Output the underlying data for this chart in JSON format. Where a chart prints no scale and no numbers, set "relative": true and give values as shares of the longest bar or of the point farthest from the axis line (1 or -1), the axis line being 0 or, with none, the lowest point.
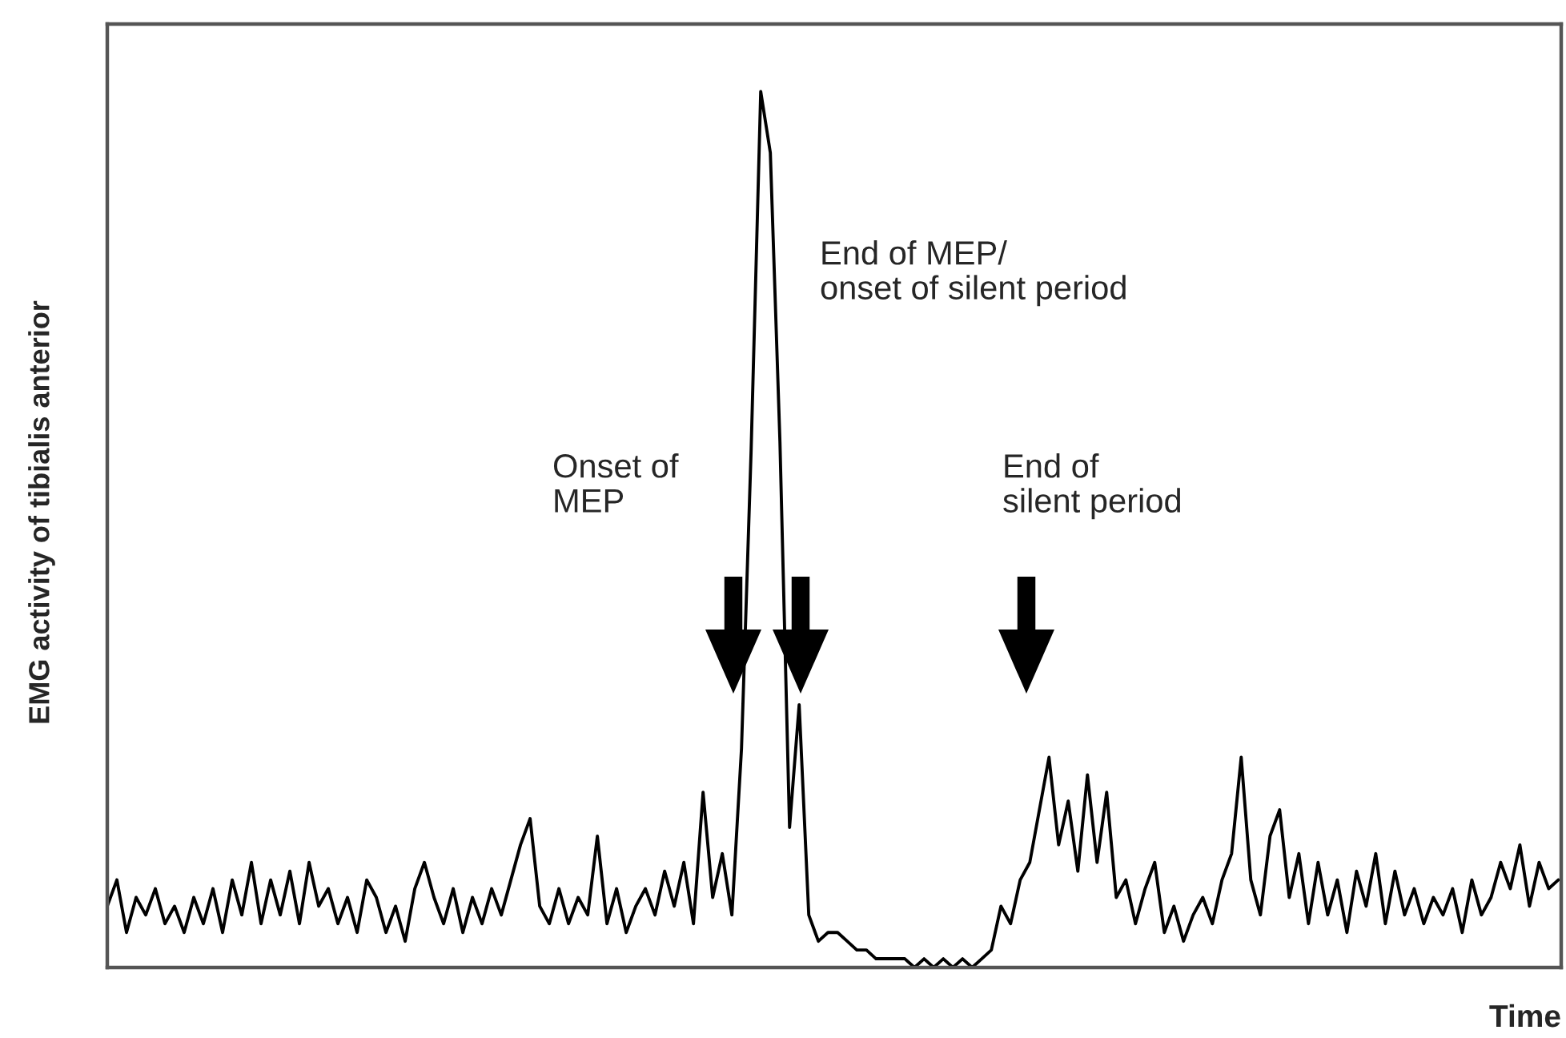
{
  "chart_data": {
    "type": "line",
    "relative": true,
    "xlabel": "Time",
    "ylabel": "EMG activity of tibialis anterior",
    "grid": false,
    "legend": false,
    "annotations": [
      "Onset of\nMEP",
      "End of MEP/\nonset of silent period",
      "End of\nsilent period"
    ],
    "categories": [
      null,
      null,
      null,
      null,
      null,
      null,
      null,
      null,
      null,
      null,
      null,
      null,
      null,
      null,
      null,
      null,
      null,
      null,
      null,
      null,
      null,
      null,
      null,
      null,
      null,
      null,
      null,
      null,
      null,
      null,
      null,
      null,
      null,
      null,
      null,
      null,
      null,
      null,
      null,
      null,
      null,
      null,
      null,
      null,
      null,
      null,
      null,
      null,
      null,
      null,
      null,
      null,
      null,
      null,
      null,
      null,
      null,
      null,
      null,
      null,
      null,
      null,
      null,
      null,
      null,
      null,
      null,
      null,
      null,
      null,
      null,
      null,
      null,
      null,
      null,
      null,
      null,
      null,
      null,
      null,
      null,
      null,
      null,
      null,
      null,
      null,
      null,
      null,
      null,
      null,
      null,
      null,
      null,
      null,
      null,
      null,
      null,
      null,
      null,
      null,
      null,
      null,
      null,
      null,
      null,
      null,
      null,
      null,
      null,
      null,
      null,
      null,
      null,
      null,
      null,
      null,
      null,
      null,
      null,
      null,
      null,
      null,
      null,
      null,
      null,
      null,
      null,
      null,
      null,
      null,
      null,
      null,
      null,
      null,
      null,
      null,
      null,
      null,
      null,
      null,
      null,
      null,
      null,
      null,
      null,
      null,
      null,
      null,
      null,
      null,
      null,
      null
    ],
    "series": [
      {
        "color": "#000000",
        "values": [
          0.07,
          0.1,
          0.04,
          0.08,
          0.06,
          0.09,
          0.05,
          0.07,
          0.04,
          0.08,
          0.05,
          0.09,
          0.04,
          0.1,
          0.06,
          0.12,
          0.05,
          0.1,
          0.06,
          0.11,
          0.05,
          0.12,
          0.07,
          0.09,
          0.05,
          0.08,
          0.04,
          0.1,
          0.08,
          0.04,
          0.07,
          0.03,
          0.09,
          0.12,
          0.08,
          0.05,
          0.09,
          0.04,
          0.08,
          0.05,
          0.09,
          0.06,
          0.1,
          0.14,
          0.17,
          0.07,
          0.05,
          0.09,
          0.05,
          0.08,
          0.06,
          0.15,
          0.05,
          0.09,
          0.04,
          0.07,
          0.09,
          0.06,
          0.11,
          0.07,
          0.12,
          0.05,
          0.2,
          0.08,
          0.13,
          0.06,
          0.25,
          0.59,
          1.0,
          0.93,
          0.6,
          0.16,
          0.3,
          0.06,
          0.03,
          0.04,
          0.04,
          0.03,
          0.02,
          0.02,
          0.01,
          0.01,
          0.01,
          0.01,
          0.0,
          0.01,
          0.0,
          0.01,
          0.0,
          0.01,
          0.0,
          0.01,
          0.02,
          0.07,
          0.05,
          0.1,
          0.12,
          0.18,
          0.24,
          0.14,
          0.19,
          0.11,
          0.22,
          0.12,
          0.2,
          0.08,
          0.1,
          0.05,
          0.09,
          0.12,
          0.04,
          0.07,
          0.03,
          0.06,
          0.08,
          0.05,
          0.1,
          0.13,
          0.24,
          0.1,
          0.06,
          0.15,
          0.18,
          0.08,
          0.13,
          0.05,
          0.12,
          0.06,
          0.1,
          0.04,
          0.11,
          0.07,
          0.13,
          0.05,
          0.11,
          0.06,
          0.09,
          0.05,
          0.08,
          0.06,
          0.09,
          0.04,
          0.1,
          0.06,
          0.08,
          0.12,
          0.09,
          0.14,
          0.07,
          0.12,
          0.09,
          0.1
        ]
      }
    ]
  }
}
